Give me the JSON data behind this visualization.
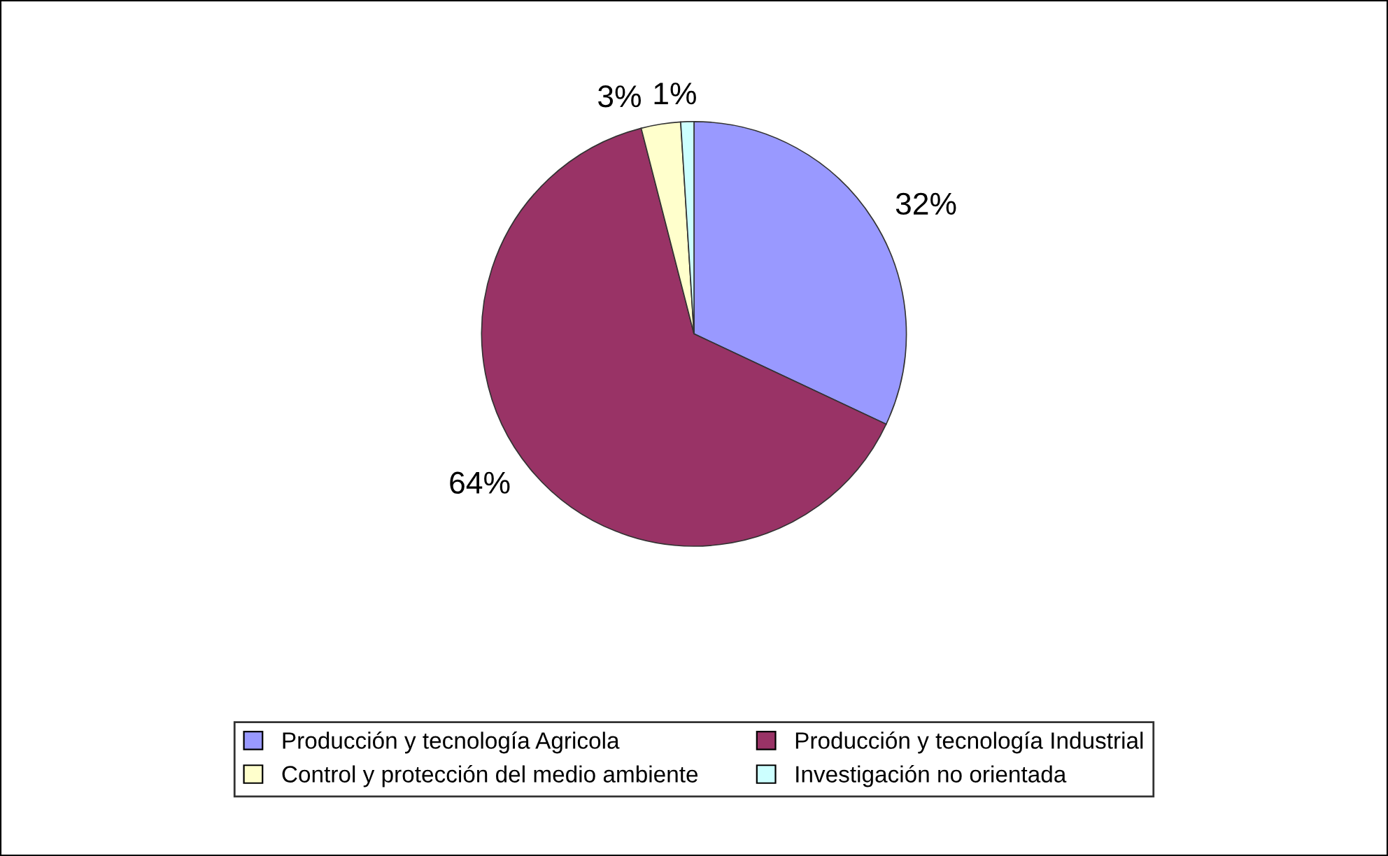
{
  "chart_data": {
    "type": "pie",
    "categories": [
      "Producción y tecnología Agricola",
      "Producción y tecnología Industrial",
      "Control y protección del medio ambiente",
      "Investigación no orientada"
    ],
    "values": [
      32,
      64,
      3,
      1
    ],
    "colors": [
      "#9999ff",
      "#993366",
      "#ffffcc",
      "#ccffff"
    ],
    "value_labels": [
      "32%",
      "64%",
      "3%",
      "1%"
    ],
    "legend": "bottom"
  }
}
